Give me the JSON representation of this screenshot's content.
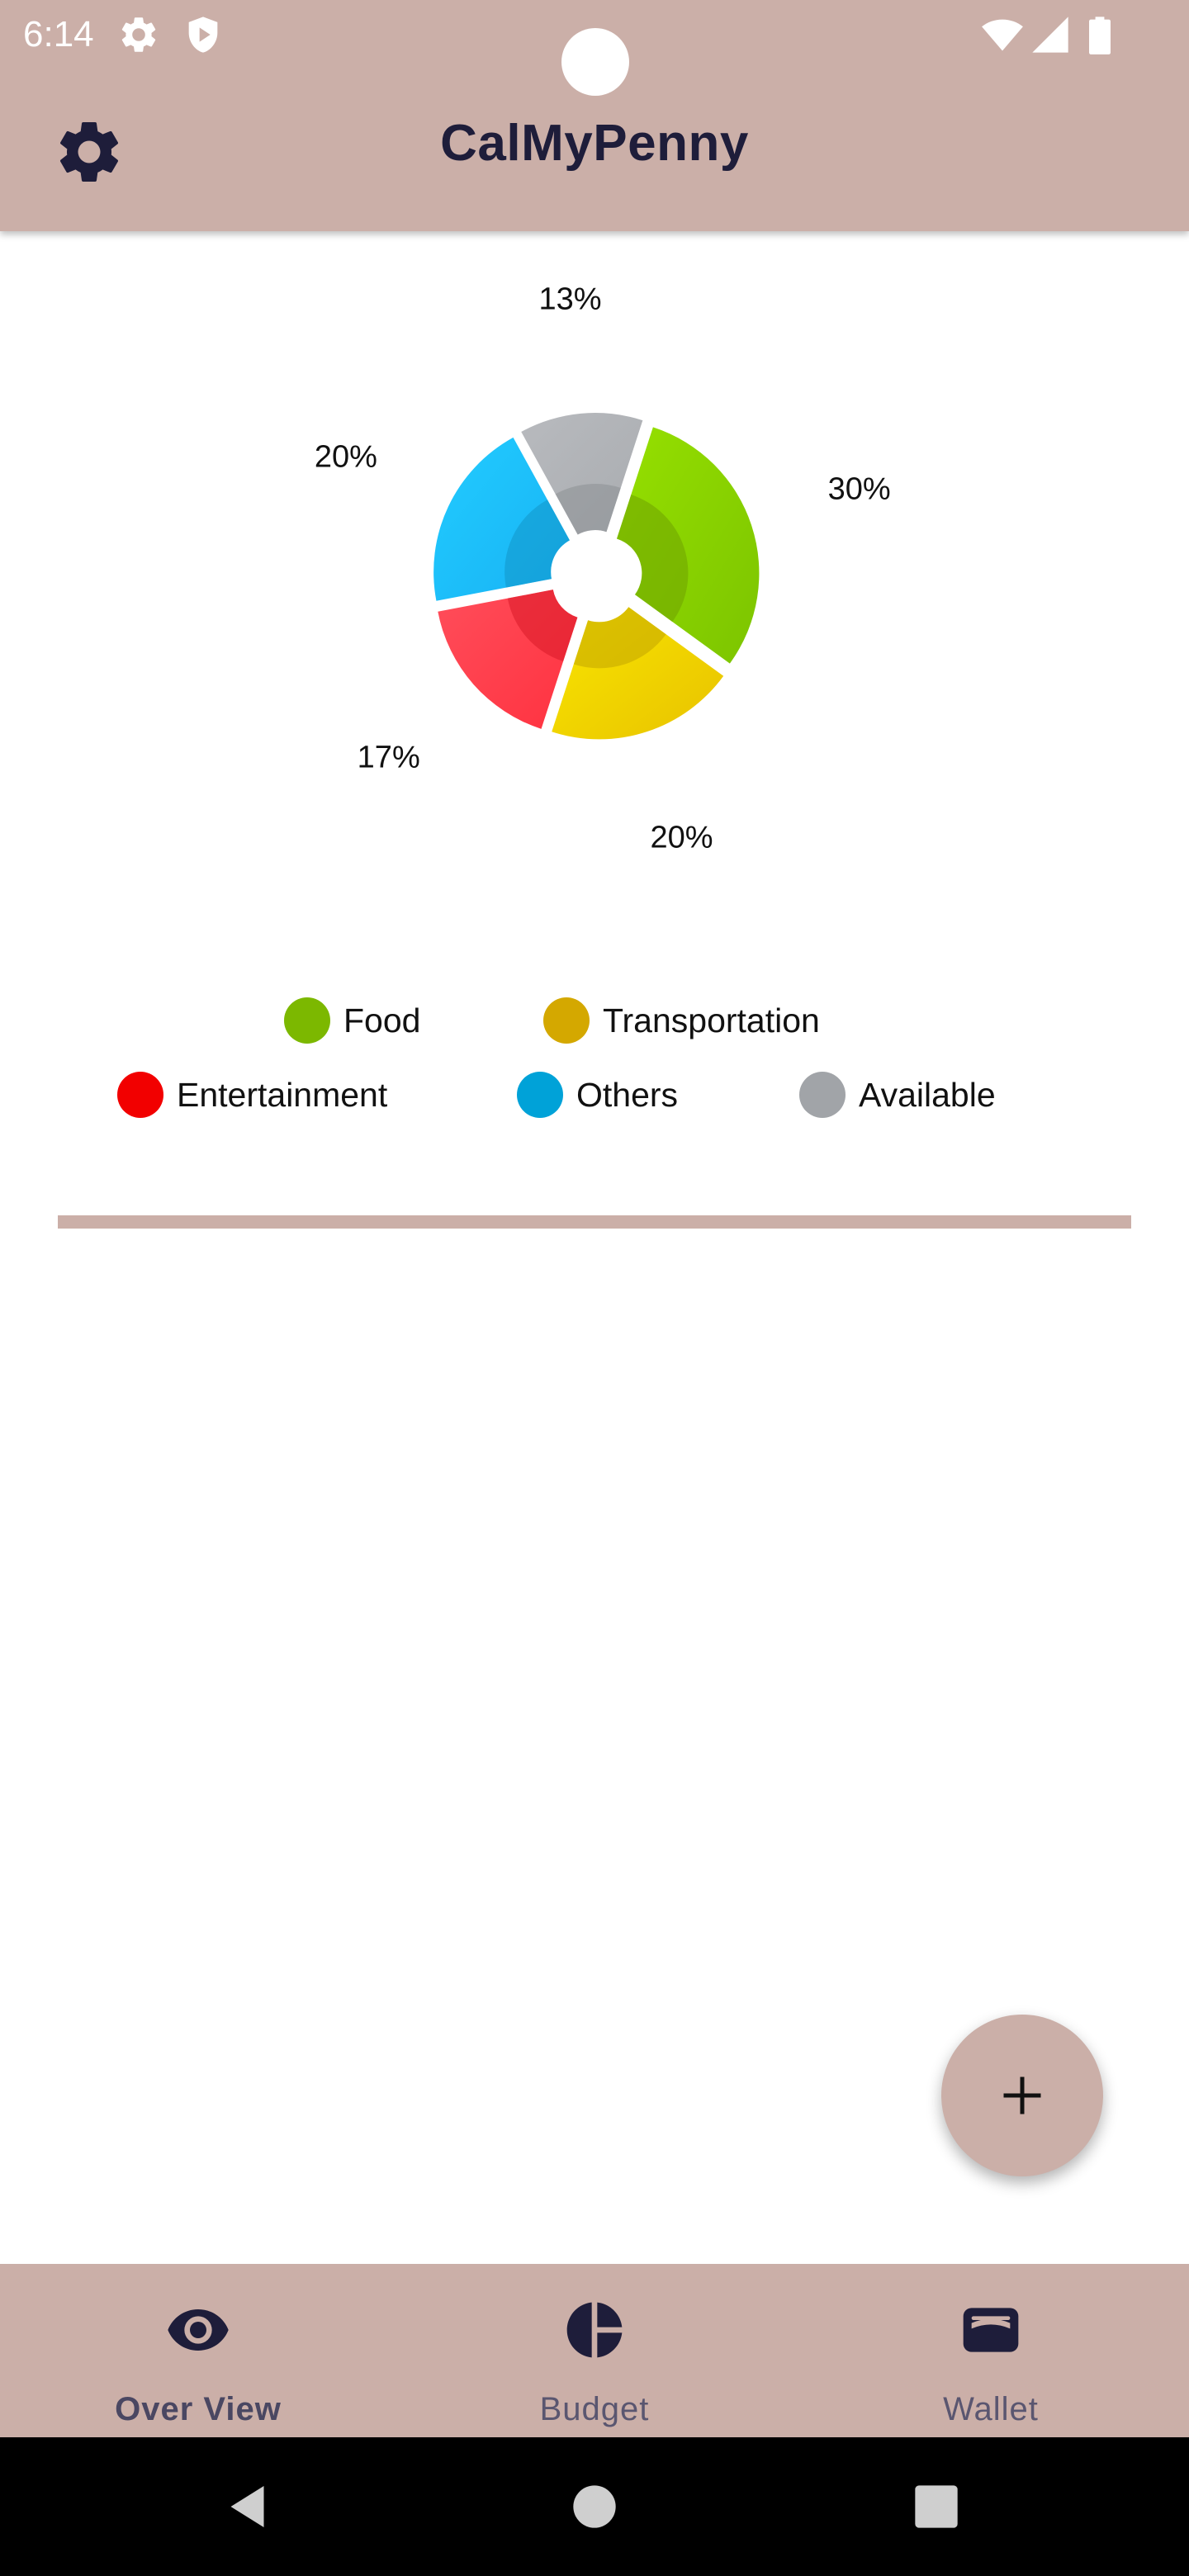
{
  "status_bar": {
    "time": "6:14",
    "icons": [
      "gear-icon",
      "shield-icon",
      "wifi-icon",
      "signal-icon",
      "battery-icon"
    ]
  },
  "app_bar": {
    "title": "CalMyPenny",
    "settings_icon": "gear-icon"
  },
  "colors": {
    "bar_bg": "#cbafa8",
    "title": "#1e1d3a",
    "nav_text": "#5a5670"
  },
  "chart_data": {
    "type": "pie",
    "style": "donut-exploded",
    "labels": [
      "Food",
      "Transportation",
      "Entertainment",
      "Others",
      "Available"
    ],
    "values": [
      30,
      20,
      17,
      20,
      13
    ],
    "percent_labels": [
      "30%",
      "20%",
      "17%",
      "20%",
      "13%"
    ],
    "colors": [
      "#7cb800",
      "#d4a800",
      "#f20000",
      "#00a2d8",
      "#a1a4a8"
    ],
    "gradient_start": [
      "#96e000",
      "#f9e600",
      "#ff4d5a",
      "#22ccff",
      "#b8babe"
    ],
    "gradient_end": [
      "#7cc400",
      "#e8c200",
      "#ff3240",
      "#18b2f4",
      "#a9acb0"
    ],
    "inner_shade": [
      "#6fa300",
      "#c2a500",
      "#d81a28",
      "#1296c9",
      "#8d9094"
    ],
    "legend_position": "bottom"
  },
  "legend": {
    "items": [
      {
        "label": "Food",
        "color": "#7cb800"
      },
      {
        "label": "Transportation",
        "color": "#d4a800"
      },
      {
        "label": "Entertainment",
        "color": "#f20000"
      },
      {
        "label": "Others",
        "color": "#00a2d8"
      },
      {
        "label": "Available",
        "color": "#a1a4a8"
      }
    ]
  },
  "fab": {
    "icon": "plus-icon"
  },
  "bottom_nav": {
    "items": [
      {
        "label": "Over View",
        "icon": "eye-icon",
        "active": true
      },
      {
        "label": "Budget",
        "icon": "pie-chart-icon",
        "active": false
      },
      {
        "label": "Wallet",
        "icon": "wallet-icon",
        "active": false
      }
    ]
  },
  "system_nav": {
    "buttons": [
      "back-icon",
      "home-icon",
      "recents-icon"
    ]
  }
}
